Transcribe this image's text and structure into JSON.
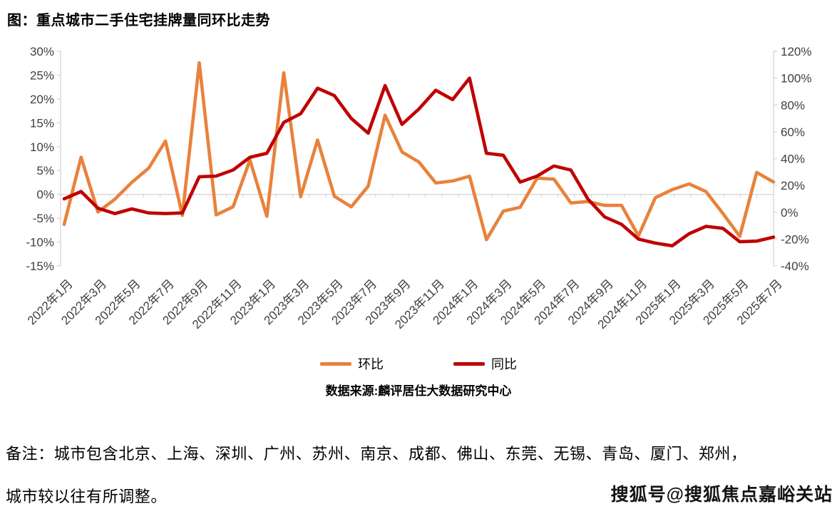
{
  "title": "图：重点城市二手住宅挂牌量同环比走势",
  "chart_data": {
    "type": "line",
    "title": "图：重点城市二手住宅挂牌量同环比走势",
    "categories": [
      "2022年1月",
      "2022年2月",
      "2022年3月",
      "2022年4月",
      "2022年5月",
      "2022年6月",
      "2022年7月",
      "2022年8月",
      "2022年9月",
      "2022年10月",
      "2022年11月",
      "2022年12月",
      "2023年1月",
      "2023年2月",
      "2023年3月",
      "2023年4月",
      "2023年5月",
      "2023年6月",
      "2023年7月",
      "2023年8月",
      "2023年9月",
      "2023年10月",
      "2023年11月",
      "2023年12月",
      "2024年1月",
      "2024年2月",
      "2024年3月",
      "2024年4月",
      "2024年5月",
      "2024年6月",
      "2024年7月",
      "2024年8月",
      "2024年9月",
      "2024年10月",
      "2024年11月",
      "2024年12月",
      "2025年1月",
      "2025年2月",
      "2025年3月",
      "2025年4月",
      "2025年5月",
      "2025年6月",
      "2025年7月"
    ],
    "x_label_every": 2,
    "series": [
      {
        "name": "环比",
        "axis": "left",
        "color": "#E8823C",
        "values": [
          -6.3,
          7.8,
          -3.7,
          -1.0,
          2.5,
          5.5,
          11.2,
          -4.4,
          27.6,
          -4.3,
          -2.6,
          7.2,
          -4.6,
          25.5,
          -0.5,
          11.4,
          -0.4,
          -2.6,
          1.7,
          16.6,
          8.9,
          6.8,
          2.4,
          2.8,
          3.8,
          -9.5,
          -3.5,
          -2.7,
          3.4,
          3.2,
          -1.8,
          -1.5,
          -2.3,
          -2.3,
          -8.7,
          -0.7,
          1.0,
          2.2,
          0.6,
          -4.0,
          -8.8,
          4.6,
          2.6
        ]
      },
      {
        "name": "同比",
        "axis": "right",
        "color": "#C00000",
        "values": [
          10,
          15.5,
          3,
          -1,
          2.5,
          -0.5,
          -1,
          -0.5,
          26.5,
          27,
          31.5,
          41,
          44,
          67,
          73.5,
          92.5,
          87,
          70,
          59,
          94.5,
          65.5,
          77,
          91,
          84,
          100,
          44,
          42.5,
          22.5,
          27,
          34.5,
          31.5,
          10,
          -3.5,
          -9,
          -20,
          -23,
          -25,
          -16,
          -10.5,
          -12,
          -22,
          -21.5,
          -18.5
        ]
      }
    ],
    "axes": {
      "left": {
        "min": -15,
        "max": 30,
        "step": 5,
        "unit": "%"
      },
      "right": {
        "min": -40,
        "max": 120,
        "step": 20,
        "unit": "%"
      }
    },
    "gridlines": "zero-line-only",
    "legend_position": "bottom-center",
    "source": "数据来源:麟评居住大数据研究中心"
  },
  "note": {
    "line1": "备注：城市包含北京、上海、深圳、广州、苏州、南京、成都、佛山、东莞、无锡、青岛、厦门、郑州，",
    "line2": "城市较以往有所调整。"
  },
  "watermark": "搜狐号@搜狐焦点嘉峪关站",
  "colors": {
    "axis_line": "#D6D6D6",
    "tick_text": "#3f3f3f"
  }
}
